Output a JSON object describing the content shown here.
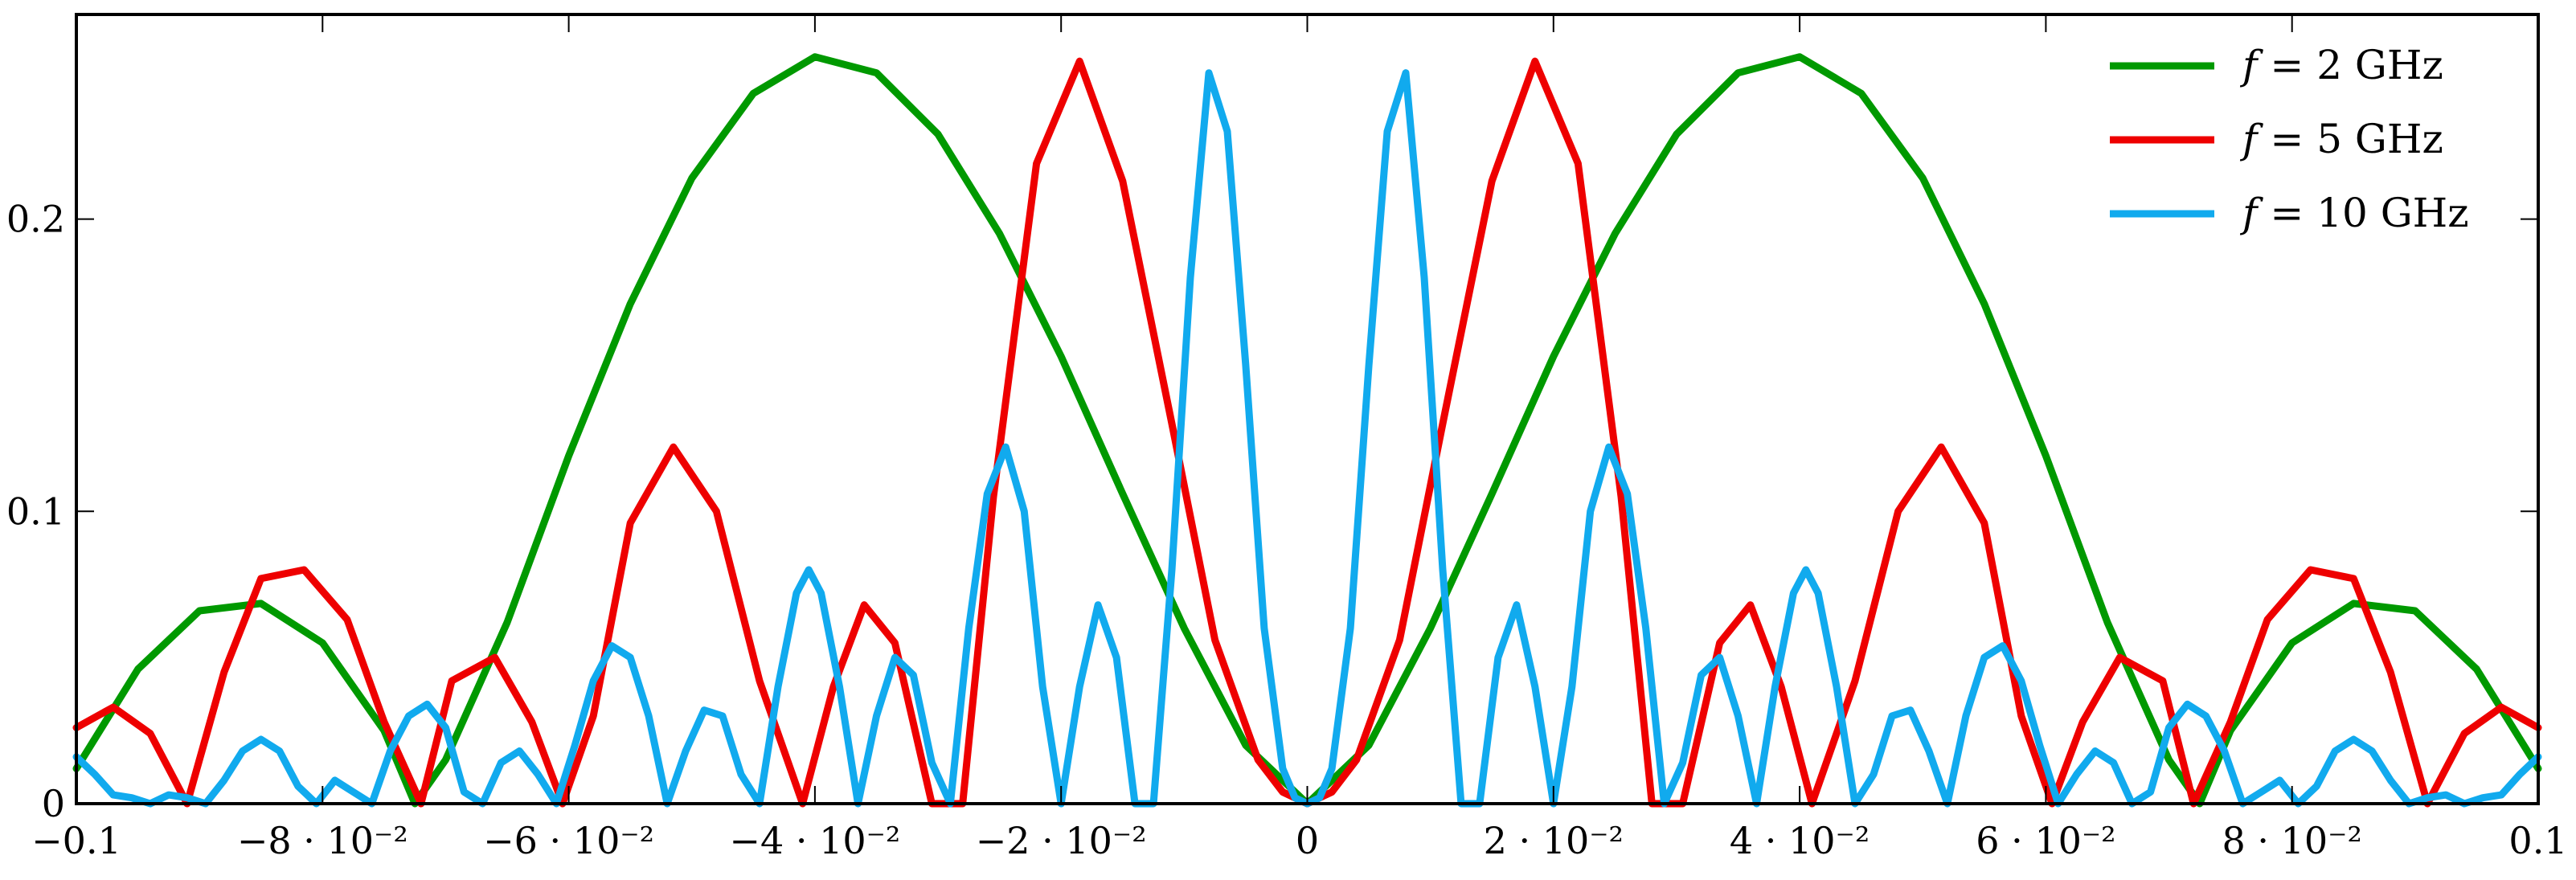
{
  "chart_data": {
    "type": "line",
    "title": "",
    "xlabel": "",
    "ylabel": "",
    "xlim": [
      -0.1,
      0.1
    ],
    "ylim": [
      0,
      0.27
    ],
    "grid": false,
    "legend_position": "top-right",
    "x_ticks": [
      {
        "value": -0.1,
        "label": "−0.1"
      },
      {
        "value": -0.08,
        "label": "−8 · 10⁻²"
      },
      {
        "value": -0.06,
        "label": "−6 · 10⁻²"
      },
      {
        "value": -0.04,
        "label": "−4 · 10⁻²"
      },
      {
        "value": -0.02,
        "label": "−2 · 10⁻²"
      },
      {
        "value": 0,
        "label": "0"
      },
      {
        "value": 0.02,
        "label": "2 · 10⁻²"
      },
      {
        "value": 0.04,
        "label": "4 · 10⁻²"
      },
      {
        "value": 0.06,
        "label": "6 · 10⁻²"
      },
      {
        "value": 0.08,
        "label": "8 · 10⁻²"
      },
      {
        "value": 0.1,
        "label": "0.1"
      }
    ],
    "y_ticks": [
      {
        "value": 0,
        "label": "0"
      },
      {
        "value": 0.1,
        "label": "0.1"
      },
      {
        "value": 0.2,
        "label": "0.2"
      }
    ],
    "series": [
      {
        "name": "f = 2 GHz",
        "legend_var": "f",
        "legend_rest": " = 2 GHz",
        "color": "#009900",
        "x": [
          -0.1,
          -0.095,
          -0.09,
          -0.085,
          -0.08,
          -0.075,
          -0.0725,
          -0.07,
          -0.065,
          -0.06,
          -0.055,
          -0.05,
          -0.045,
          -0.04,
          -0.035,
          -0.03,
          -0.025,
          -0.02,
          -0.015,
          -0.01,
          -0.005,
          0,
          0.005,
          0.01,
          0.015,
          0.02,
          0.025,
          0.03,
          0.035,
          0.04,
          0.045,
          0.05,
          0.055,
          0.06,
          0.065,
          0.07,
          0.0725,
          0.075,
          0.08,
          0.085,
          0.09,
          0.095,
          0.1
        ],
        "values": [
          0.012,
          0.046,
          0.066,
          0.0685,
          0.055,
          0.025,
          0.0,
          0.015,
          0.062,
          0.119,
          0.171,
          0.214,
          0.243,
          0.2555,
          0.25,
          0.229,
          0.195,
          0.153,
          0.106,
          0.06,
          0.02,
          0.0,
          0.02,
          0.06,
          0.106,
          0.153,
          0.195,
          0.229,
          0.25,
          0.2555,
          0.243,
          0.214,
          0.171,
          0.119,
          0.062,
          0.015,
          0.0,
          0.025,
          0.055,
          0.0685,
          0.066,
          0.046,
          0.012
        ]
      },
      {
        "name": "f = 5 GHz",
        "legend_var": "f",
        "legend_rest": " = 5 GHz",
        "color": "#ee0000",
        "x": [
          -0.1,
          -0.097,
          -0.094,
          -0.091,
          -0.088,
          -0.085,
          -0.0815,
          -0.078,
          -0.075,
          -0.072,
          -0.0695,
          -0.066,
          -0.063,
          -0.0605,
          -0.058,
          -0.055,
          -0.0515,
          -0.048,
          -0.0445,
          -0.041,
          -0.0385,
          -0.036,
          -0.0335,
          -0.0305,
          -0.028,
          -0.0255,
          -0.022,
          -0.0185,
          -0.015,
          -0.011,
          -0.0075,
          -0.004,
          -0.002,
          0,
          0.002,
          0.004,
          0.0075,
          0.011,
          0.015,
          0.0185,
          0.022,
          0.0255,
          0.028,
          0.0305,
          0.0335,
          0.036,
          0.0385,
          0.041,
          0.0445,
          0.048,
          0.0515,
          0.055,
          0.058,
          0.0605,
          0.063,
          0.066,
          0.0695,
          0.072,
          0.075,
          0.078,
          0.0815,
          0.085,
          0.088,
          0.091,
          0.094,
          0.097,
          0.1
        ],
        "values": [
          0.026,
          0.033,
          0.024,
          0.0,
          0.045,
          0.077,
          0.08,
          0.063,
          0.028,
          0.0,
          0.042,
          0.05,
          0.028,
          0.0,
          0.03,
          0.096,
          0.122,
          0.1,
          0.042,
          0.0,
          0.04,
          0.068,
          0.055,
          0.0,
          0.0,
          0.105,
          0.219,
          0.254,
          0.213,
          0.13,
          0.056,
          0.015,
          0.004,
          0.0,
          0.004,
          0.015,
          0.056,
          0.13,
          0.213,
          0.254,
          0.219,
          0.105,
          0.0,
          0.0,
          0.055,
          0.068,
          0.04,
          0.0,
          0.042,
          0.1,
          0.122,
          0.096,
          0.03,
          0.0,
          0.028,
          0.05,
          0.042,
          0.0,
          0.028,
          0.063,
          0.08,
          0.077,
          0.045,
          0.0,
          0.024,
          0.033,
          0.026
        ]
      },
      {
        "name": "f = 10 GHz",
        "legend_var": "f",
        "legend_rest": " = 10 GHz",
        "color": "#11aaee",
        "x": [
          -0.1,
          -0.0985,
          -0.097,
          -0.0955,
          -0.094,
          -0.0925,
          -0.091,
          -0.0895,
          -0.088,
          -0.0865,
          -0.085,
          -0.0835,
          -0.082,
          -0.0805,
          -0.079,
          -0.0775,
          -0.076,
          -0.0745,
          -0.073,
          -0.0715,
          -0.07,
          -0.0685,
          -0.067,
          -0.0655,
          -0.064,
          -0.0625,
          -0.061,
          -0.0595,
          -0.058,
          -0.0565,
          -0.055,
          -0.0535,
          -0.052,
          -0.0505,
          -0.049,
          -0.0475,
          -0.046,
          -0.0445,
          -0.043,
          -0.0415,
          -0.0405,
          -0.0395,
          -0.038,
          -0.0365,
          -0.035,
          -0.0335,
          -0.032,
          -0.0305,
          -0.029,
          -0.0275,
          -0.026,
          -0.0245,
          -0.023,
          -0.0215,
          -0.02,
          -0.0185,
          -0.017,
          -0.0155,
          -0.014,
          -0.0125,
          -0.011,
          -0.0095,
          -0.008,
          -0.0065,
          -0.005,
          -0.0035,
          -0.002,
          -0.001,
          0,
          0.001,
          0.002,
          0.0035,
          0.005,
          0.0065,
          0.008,
          0.0095,
          0.011,
          0.0125,
          0.014,
          0.0155,
          0.017,
          0.0185,
          0.02,
          0.0215,
          0.023,
          0.0245,
          0.026,
          0.0275,
          0.029,
          0.0305,
          0.032,
          0.0335,
          0.035,
          0.0365,
          0.038,
          0.0395,
          0.0405,
          0.0415,
          0.043,
          0.0445,
          0.046,
          0.0475,
          0.049,
          0.0505,
          0.052,
          0.0535,
          0.055,
          0.0565,
          0.058,
          0.0595,
          0.061,
          0.0625,
          0.064,
          0.0655,
          0.067,
          0.0685,
          0.07,
          0.0715,
          0.073,
          0.0745,
          0.076,
          0.0775,
          0.079,
          0.0805,
          0.082,
          0.0835,
          0.085,
          0.0865,
          0.088,
          0.0895,
          0.091,
          0.0925,
          0.094,
          0.0955,
          0.097,
          0.0985,
          0.1
        ],
        "values": [
          0.016,
          0.01,
          0.003,
          0.002,
          0.0,
          0.003,
          0.002,
          0.0,
          0.008,
          0.018,
          0.022,
          0.018,
          0.006,
          0.0,
          0.008,
          0.004,
          0.0,
          0.018,
          0.03,
          0.034,
          0.026,
          0.004,
          0.0,
          0.014,
          0.018,
          0.01,
          0.0,
          0.02,
          0.042,
          0.054,
          0.05,
          0.03,
          0.0,
          0.018,
          0.032,
          0.03,
          0.01,
          0.0,
          0.04,
          0.072,
          0.08,
          0.072,
          0.04,
          0.0,
          0.03,
          0.05,
          0.044,
          0.014,
          0.0,
          0.06,
          0.106,
          0.122,
          0.1,
          0.04,
          0.0,
          0.04,
          0.068,
          0.05,
          0.0,
          0.0,
          0.08,
          0.18,
          0.25,
          0.23,
          0.15,
          0.06,
          0.012,
          0.002,
          0.0,
          0.002,
          0.012,
          0.06,
          0.15,
          0.23,
          0.25,
          0.18,
          0.08,
          0.0,
          0.0,
          0.05,
          0.068,
          0.04,
          0.0,
          0.04,
          0.1,
          0.122,
          0.106,
          0.06,
          0.0,
          0.014,
          0.044,
          0.05,
          0.03,
          0.0,
          0.04,
          0.072,
          0.08,
          0.072,
          0.04,
          0.0,
          0.01,
          0.03,
          0.032,
          0.018,
          0.0,
          0.03,
          0.05,
          0.054,
          0.042,
          0.02,
          0.0,
          0.01,
          0.018,
          0.014,
          0.0,
          0.004,
          0.026,
          0.034,
          0.03,
          0.018,
          0.0,
          0.004,
          0.008,
          0.0,
          0.006,
          0.018,
          0.022,
          0.018,
          0.008,
          0.0,
          0.002,
          0.003,
          0.0,
          0.002,
          0.003,
          0.01,
          0.016
        ]
      }
    ]
  }
}
